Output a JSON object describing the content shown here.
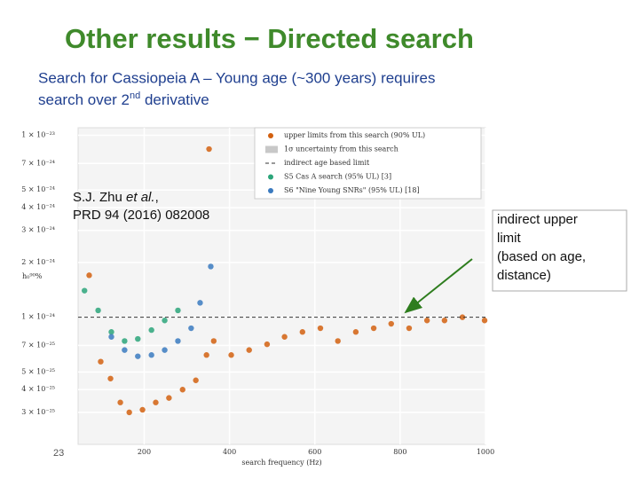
{
  "slide": {
    "title": "Other results − Directed search",
    "subtitle_line1": "Search for Cassiopeia A – Young age (~300 years) requires",
    "subtitle_line2_pre": "search over 2",
    "subtitle_line2_sup": "nd",
    "subtitle_line2_post": " derivative",
    "citation_author": "S.J. Zhu ",
    "citation_etal": "et al.",
    "citation_comma": ",",
    "citation_ref": "PRD  94 (2016) 082008",
    "note_lines": [
      "indirect upper",
      "limit",
      "(based on age,",
      "distance)"
    ],
    "page_number": "23"
  },
  "chart_data": {
    "type": "scatter",
    "xlabel": "search frequency (Hz)",
    "ylabel": "h₀⁹⁰%",
    "log_y": true,
    "grid": true,
    "xlim": [
      45,
      1000
    ],
    "xticks": [
      200,
      400,
      600,
      800,
      1000
    ],
    "ylim": [
      2e-25,
      1.1e-23
    ],
    "yticks": [
      {
        "value": 1e-23,
        "label": "1 × 10⁻²³"
      },
      {
        "value": 7e-24,
        "label": "7 × 10⁻²⁴"
      },
      {
        "value": 5e-24,
        "label": "5 × 10⁻²⁴"
      },
      {
        "value": 4e-24,
        "label": "4 × 10⁻²⁴"
      },
      {
        "value": 3e-24,
        "label": "3 × 10⁻²⁴"
      },
      {
        "value": 2e-24,
        "label": "2 × 10⁻²⁴"
      },
      {
        "value": 1e-24,
        "label": "1 × 10⁻²⁴"
      },
      {
        "value": 7e-25,
        "label": "7 × 10⁻²⁵"
      },
      {
        "value": 5e-25,
        "label": "5 × 10⁻²⁵"
      },
      {
        "value": 4e-25,
        "label": "4 × 10⁻²⁵"
      },
      {
        "value": 3e-25,
        "label": "3 × 10⁻²⁵"
      }
    ],
    "legend": "upper right",
    "series": [
      {
        "name": "upper limits from this search (90% UL)",
        "color": "#d2600f",
        "kind": "points",
        "x": [
          71,
          98,
          121,
          144,
          165,
          196,
          227,
          258,
          290,
          321,
          346,
          352,
          363,
          404,
          446,
          488,
          529,
          571,
          613,
          654,
          696,
          738,
          779,
          821,
          863,
          904,
          946,
          998
        ],
        "values": [
          1.7e-24,
          5.7e-25,
          4.6e-25,
          3.4e-25,
          3e-25,
          3.1e-25,
          3.4e-25,
          3.6e-25,
          4e-25,
          4.5e-25,
          6.2e-25,
          8.4e-24,
          7.4e-25,
          6.2e-25,
          6.6e-25,
          7.1e-25,
          7.8e-25,
          8.3e-25,
          8.7e-25,
          7.4e-25,
          8.3e-25,
          8.7e-25,
          9.2e-25,
          8.7e-25,
          9.6e-25,
          9.6e-25,
          1e-24,
          9.6e-25
        ]
      },
      {
        "name": "1σ uncertainty from this search",
        "color": "#c8c8c8",
        "kind": "band"
      },
      {
        "name": "indirect age based limit",
        "color": "#333333",
        "kind": "dashed",
        "x": [
          45,
          1000
        ],
        "values": [
          1e-24,
          1e-24
        ]
      },
      {
        "name": "S5 Cas A search (95% UL) [3]",
        "color": "#2ca57a",
        "kind": "points",
        "x": [
          60,
          92,
          123,
          154,
          185,
          217,
          248,
          279
        ],
        "values": [
          1.4e-24,
          1.09e-24,
          8.3e-25,
          7.4e-25,
          7.6e-25,
          8.5e-25,
          9.6e-25,
          1.09e-24
        ]
      },
      {
        "name": "S6 \"Nine Young SNRs\" (95% UL) [18]",
        "color": "#3a7abf",
        "kind": "points",
        "x": [
          123,
          154,
          185,
          217,
          248,
          279,
          310,
          331,
          356
        ],
        "values": [
          7.8e-25,
          6.6e-25,
          6.1e-25,
          6.2e-25,
          6.6e-25,
          7.4e-25,
          8.7e-25,
          1.2e-24,
          1.9e-24
        ]
      }
    ]
  }
}
